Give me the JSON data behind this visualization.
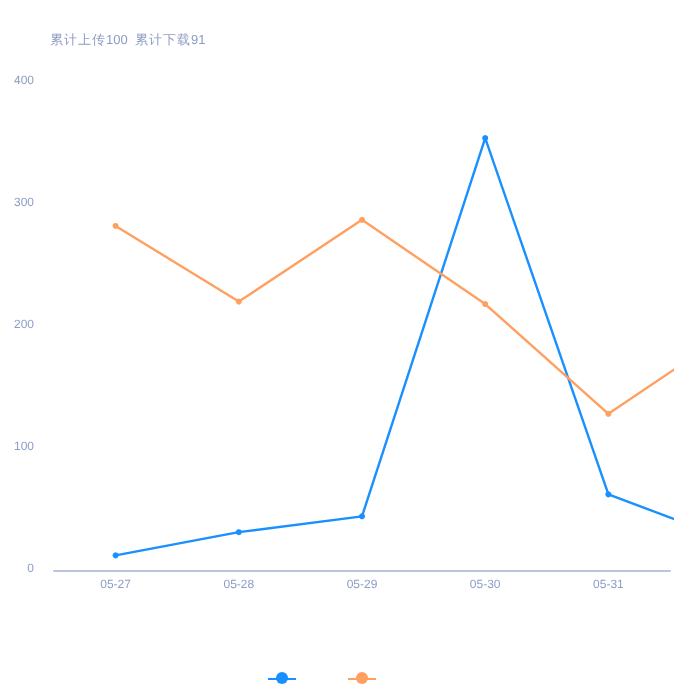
{
  "chart_data": {
    "type": "line",
    "title": "累计上传100  累计下载91",
    "categories": [
      "05-27",
      "05-28",
      "05-29",
      "05-30",
      "05-31",
      null
    ],
    "series": [
      {
        "color": "#1890ff",
        "values": [
          12,
          31,
          44,
          354,
          62,
          24
        ]
      },
      {
        "color": "#ffa060",
        "values": [
          282,
          220,
          287,
          218,
          128,
          196
        ]
      }
    ],
    "ylim": [
      0,
      400
    ],
    "yticks": [
      0,
      100,
      200,
      300,
      400
    ],
    "grid": false,
    "marker": "circle",
    "line_style": "solid"
  }
}
